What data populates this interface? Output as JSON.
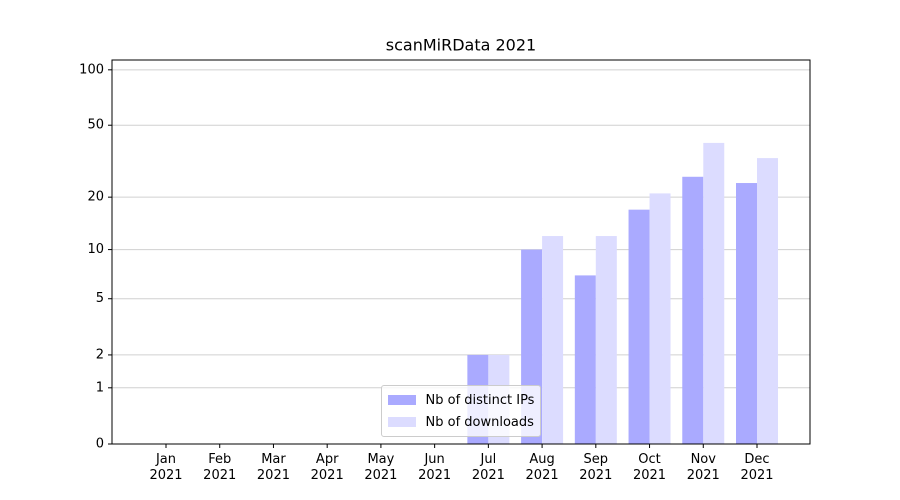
{
  "chart_data": {
    "type": "bar",
    "title": "scanMiRData 2021",
    "categories": [
      "Jan\n2021",
      "Feb\n2021",
      "Mar\n2021",
      "Apr\n2021",
      "May\n2021",
      "Jun\n2021",
      "Jul\n2021",
      "Aug\n2021",
      "Sep\n2021",
      "Oct\n2021",
      "Nov\n2021",
      "Dec\n2021"
    ],
    "series": [
      {
        "name": "Nb of distinct IPs",
        "color": "#aaaaff",
        "values": [
          0,
          0,
          0,
          0,
          0,
          0,
          2,
          10,
          7,
          17,
          26,
          24
        ]
      },
      {
        "name": "Nb of downloads",
        "color": "#dcdcff",
        "values": [
          0,
          0,
          0,
          0,
          0,
          0,
          2,
          12,
          12,
          21,
          40,
          33
        ]
      }
    ],
    "yscale": "log1p",
    "ylim": [
      0,
      113
    ],
    "yticks": [
      0,
      1,
      2,
      5,
      10,
      20,
      50,
      100
    ],
    "grid": true,
    "legend": "lower center"
  }
}
